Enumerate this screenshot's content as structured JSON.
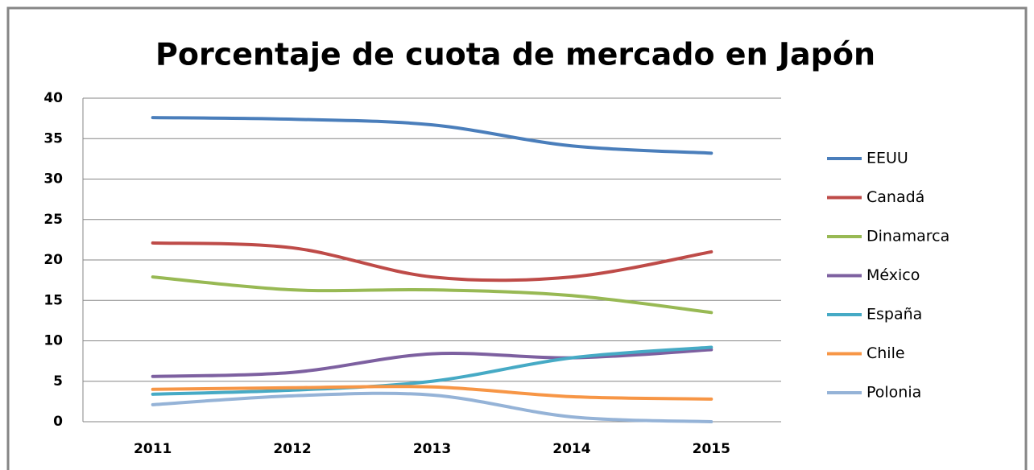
{
  "chart_data": {
    "type": "line",
    "title": "Porcentaje de cuota de mercado en Japón",
    "categories": [
      "2011",
      "2012",
      "2013",
      "2014",
      "2015"
    ],
    "series": [
      {
        "name": "EEUU",
        "color": "#4a7ebb",
        "values": [
          37.6,
          37.4,
          36.7,
          34.1,
          33.2
        ]
      },
      {
        "name": "Canadá",
        "color": "#be4b48",
        "values": [
          22.1,
          21.5,
          17.9,
          17.9,
          21.0
        ]
      },
      {
        "name": "Dinamarca",
        "color": "#98b954",
        "values": [
          17.9,
          16.3,
          16.3,
          15.6,
          13.5
        ]
      },
      {
        "name": "México",
        "color": "#7d60a0",
        "values": [
          5.6,
          6.1,
          8.4,
          7.9,
          8.9
        ]
      },
      {
        "name": "España",
        "color": "#46aac5",
        "values": [
          3.4,
          3.9,
          5.0,
          7.9,
          9.2
        ]
      },
      {
        "name": "Chile",
        "color": "#f79646",
        "values": [
          4.0,
          4.2,
          4.3,
          3.1,
          2.8
        ]
      },
      {
        "name": "Polonia",
        "color": "#95b3d7",
        "values": [
          2.1,
          3.2,
          3.3,
          0.6,
          0.0
        ]
      }
    ],
    "ylim": [
      0,
      40
    ],
    "yticks": [
      0,
      5,
      10,
      15,
      20,
      25,
      30,
      35,
      40
    ],
    "grid": true,
    "legend": "right"
  }
}
